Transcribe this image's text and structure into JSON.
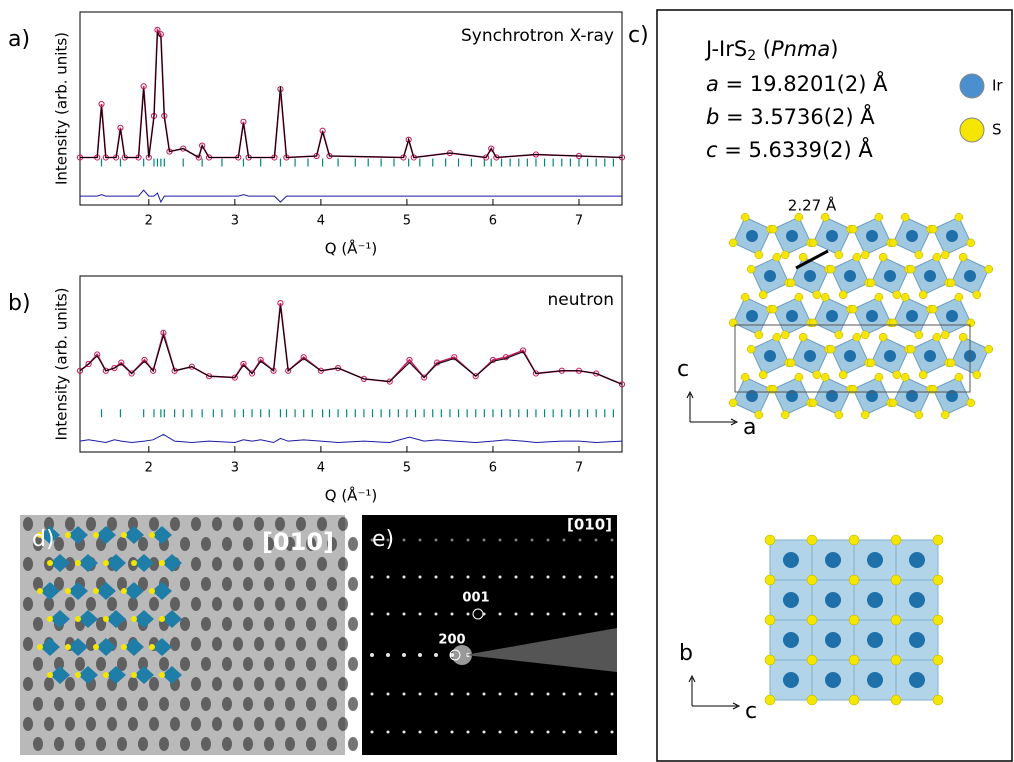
{
  "chart_data": [
    {
      "type": "line",
      "panel": "a)",
      "annotation": "Synchrotron X-ray",
      "ylabel": "Intensity (arb. units)",
      "xlabel": "Q (Å⁻¹)",
      "xlim": [
        1.2,
        7.5
      ],
      "xticks": [
        2,
        3,
        4,
        5,
        6,
        7
      ],
      "ylim": [
        -30,
        100
      ],
      "x": [
        1.2,
        1.4,
        1.45,
        1.5,
        1.62,
        1.67,
        1.72,
        1.88,
        1.94,
        2.0,
        2.06,
        2.1,
        2.14,
        2.18,
        2.24,
        2.4,
        2.58,
        2.62,
        2.7,
        3.04,
        3.1,
        3.16,
        3.46,
        3.53,
        3.6,
        3.95,
        4.02,
        4.1,
        4.96,
        5.02,
        5.08,
        5.5,
        5.92,
        5.98,
        6.04,
        6.5,
        7.0,
        7.5
      ],
      "series": [
        {
          "color": "#c2185b",
          "marker": "circle",
          "values": [
            2,
            2,
            38,
            2,
            2,
            22,
            2,
            2,
            50,
            2,
            30,
            88,
            85,
            30,
            6,
            8,
            2,
            10,
            2,
            2,
            26,
            2,
            2,
            48,
            2,
            3,
            20,
            3,
            2,
            14,
            2,
            5,
            2,
            8,
            2,
            4,
            3,
            2
          ]
        },
        {
          "color": "#000000",
          "values": [
            2,
            2,
            36,
            2,
            2,
            21,
            2,
            2,
            48,
            2,
            29,
            86,
            83,
            29,
            6,
            8,
            2,
            10,
            2,
            2,
            25,
            2,
            2,
            50,
            2,
            3,
            19,
            3,
            2,
            14,
            2,
            5,
            2,
            8,
            2,
            4,
            3,
            2
          ]
        },
        {
          "color": "#1a1aa6",
          "values": [
            -24,
            -24,
            -23,
            -24,
            -24,
            -24,
            -24,
            -24,
            -20,
            -24,
            -24,
            -22,
            -28,
            -24,
            -24,
            -24,
            -24,
            -24,
            -24,
            -24,
            -23,
            -24,
            -24,
            -28,
            -24,
            -24,
            -24,
            -24,
            -24,
            -24,
            -24,
            -24,
            -24,
            -24,
            -24,
            -24,
            -24,
            -24
          ]
        }
      ],
      "bragg_color": "#00897b",
      "bragg_positions": [
        1.45,
        1.67,
        1.94,
        2.06,
        2.1,
        2.14,
        2.18,
        2.4,
        2.62,
        2.85,
        3.1,
        3.3,
        3.53,
        3.7,
        3.85,
        4.02,
        4.2,
        4.4,
        4.55,
        4.7,
        4.85,
        5.02,
        5.15,
        5.3,
        5.45,
        5.6,
        5.75,
        5.9,
        5.98,
        6.1,
        6.2,
        6.3,
        6.4,
        6.5,
        6.6,
        6.7,
        6.8,
        6.9,
        7.0,
        7.1,
        7.2,
        7.3,
        7.4
      ]
    },
    {
      "type": "line",
      "panel": "b)",
      "annotation": "neutron",
      "ylabel": "Intensity (arb. units)",
      "xlabel": "Q (Å⁻¹)",
      "xlim": [
        1.2,
        7.5
      ],
      "xticks": [
        2,
        3,
        4,
        5,
        6,
        7
      ],
      "ylim": [
        -30,
        100
      ],
      "x": [
        1.2,
        1.3,
        1.4,
        1.5,
        1.6,
        1.68,
        1.8,
        1.95,
        2.05,
        2.17,
        2.3,
        2.5,
        2.7,
        3.0,
        3.1,
        3.2,
        3.3,
        3.45,
        3.53,
        3.62,
        3.8,
        4.0,
        4.2,
        4.5,
        4.8,
        5.03,
        5.2,
        5.35,
        5.55,
        5.8,
        6.0,
        6.15,
        6.35,
        6.5,
        6.8,
        7.0,
        7.2,
        7.5
      ],
      "series": [
        {
          "color": "#c2185b",
          "marker": "circle",
          "values": [
            30,
            35,
            42,
            30,
            32,
            36,
            28,
            38,
            30,
            58,
            30,
            33,
            26,
            25,
            35,
            28,
            38,
            30,
            80,
            30,
            40,
            30,
            32,
            24,
            22,
            38,
            25,
            36,
            40,
            26,
            38,
            40,
            45,
            28,
            30,
            30,
            28,
            20
          ]
        },
        {
          "color": "#000000",
          "values": [
            30,
            35,
            41,
            30,
            32,
            35,
            28,
            37,
            30,
            56,
            30,
            33,
            26,
            25,
            34,
            28,
            37,
            30,
            78,
            30,
            39,
            30,
            32,
            24,
            22,
            36,
            25,
            35,
            39,
            26,
            37,
            39,
            44,
            28,
            30,
            30,
            28,
            20
          ]
        },
        {
          "color": "#1a1aa6",
          "values": [
            -22,
            -21,
            -22,
            -23,
            -21,
            -22,
            -23,
            -22,
            -21,
            -17,
            -22,
            -23,
            -22,
            -23,
            -21,
            -22,
            -21,
            -23,
            -20,
            -22,
            -21,
            -22,
            -23,
            -22,
            -23,
            -19,
            -22,
            -21,
            -22,
            -23,
            -22,
            -21,
            -22,
            -23,
            -22,
            -22,
            -23,
            -22
          ]
        }
      ],
      "bragg_color": "#00897b",
      "bragg_positions": [
        1.45,
        1.67,
        1.94,
        2.06,
        2.14,
        2.18,
        2.3,
        2.4,
        2.5,
        2.62,
        2.75,
        2.85,
        3.0,
        3.1,
        3.2,
        3.3,
        3.4,
        3.53,
        3.6,
        3.7,
        3.8,
        3.9,
        4.02,
        4.1,
        4.2,
        4.3,
        4.4,
        4.5,
        4.6,
        4.7,
        4.8,
        4.9,
        5.0,
        5.1,
        5.2,
        5.3,
        5.4,
        5.5,
        5.6,
        5.7,
        5.8,
        5.9,
        6.0,
        6.1,
        6.2,
        6.3,
        6.4,
        6.5,
        6.6,
        6.7,
        6.8,
        6.9,
        7.0,
        7.1,
        7.2,
        7.3,
        7.4
      ]
    }
  ],
  "panel_c": {
    "label": "c)",
    "formula": "J-IrS",
    "subscript": "2",
    "space_group": "Pnma",
    "params": [
      {
        "symbol": "a",
        "value": " = 19.8201(2) Å"
      },
      {
        "symbol": "b",
        "value": " = 3.5736(2) Å"
      },
      {
        "symbol": "c",
        "value": " = 5.6339(2) Å"
      }
    ],
    "legend": [
      {
        "label": "Ir",
        "color": "#4a8fcf"
      },
      {
        "label": "S",
        "color": "#f5e600"
      }
    ],
    "bond": "2.27 Å",
    "axes_top": [
      "c",
      "a"
    ],
    "axes_bottom": [
      "b",
      "c"
    ]
  },
  "panel_d": {
    "label": "d)",
    "direction": "[010]"
  },
  "panel_e": {
    "label": "e)",
    "direction": "[010]",
    "spots": [
      "001",
      "200"
    ]
  }
}
